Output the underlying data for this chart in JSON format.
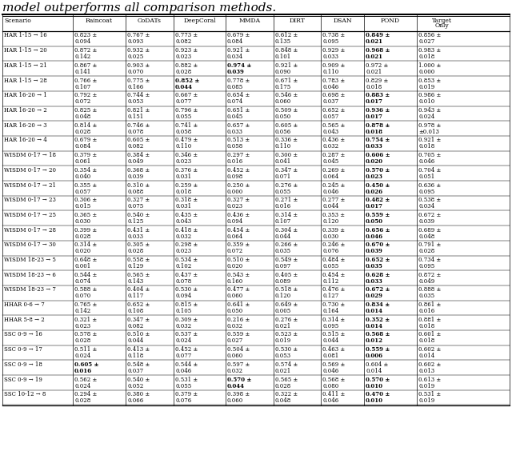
{
  "title": "model outperforms all comparison methods.",
  "columns": [
    "Scenario",
    "Raincoat",
    "CoDATs",
    "DeepCoral",
    "MMDA",
    "DIRT",
    "DSAN",
    "POND",
    "Target\nOnly"
  ],
  "rows": [
    {
      "scenario": "HAR 1-15 → 16",
      "values": [
        "0.823",
        "0.094",
        "0.767",
        "0.093",
        "0.773",
        "0.082",
        "0.679",
        "0.084",
        "0.612",
        "0.135",
        "0.738",
        "0.095",
        "0.849",
        "0.021",
        "0.856",
        "0.027"
      ],
      "bold": [
        false,
        false,
        false,
        false,
        false,
        false,
        false,
        false,
        false,
        false,
        false,
        false,
        true,
        true,
        false,
        false
      ]
    },
    {
      "scenario": "HAR 1-15 → 20",
      "values": [
        "0.872",
        "0.142",
        "0.932",
        "0.025",
        "0.923",
        "0.023",
        "0.921",
        "0.034",
        "0.848",
        "0.101",
        "0.929",
        "0.033",
        "0.968",
        "0.021",
        "0.983",
        "0.018"
      ],
      "bold": [
        false,
        false,
        false,
        false,
        false,
        false,
        false,
        false,
        false,
        false,
        false,
        false,
        true,
        true,
        false,
        false
      ]
    },
    {
      "scenario": "HAR 1-15 → 21",
      "values": [
        "0.867",
        "0.141",
        "0.903",
        "0.070",
        "0.882",
        "0.028",
        "0.974",
        "0.039",
        "0.921",
        "0.090",
        "0.909",
        "0.110",
        "0.972",
        "0.021",
        "1.000",
        "0.000"
      ],
      "bold": [
        false,
        false,
        false,
        false,
        false,
        false,
        true,
        true,
        false,
        false,
        false,
        false,
        false,
        false,
        false,
        false
      ]
    },
    {
      "scenario": "HAR 1-15 → 28",
      "values": [
        "0.766",
        "0.107",
        "0.775",
        "0.166",
        "0.852",
        "0.044",
        "0.778",
        "0.085",
        "0.671",
        "0.175",
        "0.783",
        "0.046",
        "0.829",
        "0.018",
        "0.853",
        "0.019"
      ],
      "bold": [
        false,
        false,
        false,
        false,
        true,
        true,
        false,
        false,
        false,
        false,
        false,
        false,
        false,
        false,
        false,
        false
      ]
    },
    {
      "scenario": "HAR 16-20 → 1",
      "values": [
        "0.792",
        "0.072",
        "0.744",
        "0.053",
        "0.667",
        "0.077",
        "0.654",
        "0.074",
        "0.546",
        "0.060",
        "0.698",
        "0.037",
        "0.883",
        "0.017",
        "0.986",
        "0.010"
      ],
      "bold": [
        false,
        false,
        false,
        false,
        false,
        false,
        false,
        false,
        false,
        false,
        false,
        false,
        true,
        true,
        false,
        false
      ]
    },
    {
      "scenario": "HAR 16-20 → 2",
      "values": [
        "0.825",
        "0.048",
        "0.821",
        "0.151",
        "0.796",
        "0.055",
        "0.651",
        "0.045",
        "0.509",
        "0.050",
        "0.652",
        "0.057",
        "0.936",
        "0.017",
        "0.943",
        "0.024"
      ],
      "bold": [
        false,
        false,
        false,
        false,
        false,
        false,
        false,
        false,
        false,
        false,
        false,
        false,
        true,
        true,
        false,
        false
      ]
    },
    {
      "scenario": "HAR 16-20 → 3",
      "values": [
        "0.814",
        "0.028",
        "0.746",
        "0.078",
        "0.741",
        "0.058",
        "0.657",
        "0.033",
        "0.605",
        "0.056",
        "0.565",
        "0.043",
        "0.878",
        "0.018",
        "0.978",
        "±0.013"
      ],
      "bold": [
        false,
        false,
        false,
        false,
        false,
        false,
        false,
        false,
        false,
        false,
        false,
        false,
        true,
        true,
        false,
        false
      ]
    },
    {
      "scenario": "HAR 16-20 → 4",
      "values": [
        "0.679",
        "0.084",
        "0.605",
        "0.082",
        "0.479",
        "0.110",
        "0.513",
        "0.058",
        "0.336",
        "0.110",
        "0.436",
        "0.032",
        "0.754",
        "0.033",
        "0.921",
        "0.018"
      ],
      "bold": [
        false,
        false,
        false,
        false,
        false,
        false,
        false,
        false,
        false,
        false,
        false,
        false,
        true,
        true,
        false,
        false
      ]
    },
    {
      "scenario": "WISDM 0-17 → 18",
      "values": [
        "0.379",
        "0.061",
        "0.384",
        "0.049",
        "0.346",
        "0.023",
        "0.297",
        "0.016",
        "0.300",
        "0.041",
        "0.287",
        "0.045",
        "0.606",
        "0.020",
        "0.705",
        "0.046"
      ],
      "bold": [
        false,
        false,
        false,
        false,
        false,
        false,
        false,
        false,
        false,
        false,
        false,
        false,
        true,
        true,
        false,
        false
      ]
    },
    {
      "scenario": "WISDM 0-17 → 20",
      "values": [
        "0.354",
        "0.040",
        "0.368",
        "0.039",
        "0.376",
        "0.031",
        "0.452",
        "0.098",
        "0.347",
        "0.071",
        "0.269",
        "0.064",
        "0.570",
        "0.023",
        "0.704",
        "0.051"
      ],
      "bold": [
        false,
        false,
        false,
        false,
        false,
        false,
        false,
        false,
        false,
        false,
        false,
        false,
        true,
        true,
        false,
        false
      ]
    },
    {
      "scenario": "WISDM 0-17 → 21",
      "values": [
        "0.355",
        "0.057",
        "0.310",
        "0.088",
        "0.259",
        "0.018",
        "0.250",
        "0.000",
        "0.276",
        "0.055",
        "0.245",
        "0.046",
        "0.450",
        "0.026",
        "0.636",
        "0.095"
      ],
      "bold": [
        false,
        false,
        false,
        false,
        false,
        false,
        false,
        false,
        false,
        false,
        false,
        false,
        true,
        true,
        false,
        false
      ]
    },
    {
      "scenario": "WISDM 0-17 → 23",
      "values": [
        "0.306",
        "0.015",
        "0.327",
        "0.075",
        "0.318",
        "0.031",
        "0.327",
        "0.023",
        "0.271",
        "0.016",
        "0.277",
        "0.044",
        "0.482",
        "0.017",
        "0.538",
        "0.034"
      ],
      "bold": [
        false,
        false,
        false,
        false,
        false,
        false,
        false,
        false,
        false,
        false,
        false,
        false,
        true,
        true,
        false,
        false
      ]
    },
    {
      "scenario": "WISDM 0-17 → 25",
      "values": [
        "0.365",
        "0.030",
        "0.540",
        "0.125",
        "0.435",
        "0.043",
        "0.436",
        "0.094",
        "0.314",
        "0.107",
        "0.353",
        "0.120",
        "0.559",
        "0.050",
        "0.672",
        "0.039"
      ],
      "bold": [
        false,
        false,
        false,
        false,
        false,
        false,
        false,
        false,
        false,
        false,
        false,
        false,
        true,
        true,
        false,
        false
      ]
    },
    {
      "scenario": "WISDM 0-17 → 28",
      "values": [
        "0.399",
        "0.028",
        "0.431",
        "0.033",
        "0.418",
        "0.032",
        "0.454",
        "0.064",
        "0.304",
        "0.044",
        "0.339",
        "0.030",
        "0.656",
        "0.046",
        "0.689",
        "0.048"
      ],
      "bold": [
        false,
        false,
        false,
        false,
        false,
        false,
        false,
        false,
        false,
        false,
        false,
        false,
        true,
        true,
        false,
        false
      ]
    },
    {
      "scenario": "WISDM 0-17 → 30",
      "values": [
        "0.314",
        "0.020",
        "0.305",
        "0.028",
        "0.298",
        "0.023",
        "0.359",
        "0.072",
        "0.266",
        "0.035",
        "0.246",
        "0.076",
        "0.670",
        "0.039",
        "0.791",
        "0.028"
      ],
      "bold": [
        false,
        false,
        false,
        false,
        false,
        false,
        false,
        false,
        false,
        false,
        false,
        false,
        true,
        true,
        false,
        false
      ]
    },
    {
      "scenario": "WISDM 18-23 → 5",
      "values": [
        "0.648",
        "0.001",
        "0.558",
        "0.129",
        "0.534",
        "0.102",
        "0.510",
        "0.020",
        "0.549",
        "0.097",
        "0.484",
        "0.055",
        "0.652",
        "0.035",
        "0.734",
        "0.095"
      ],
      "bold": [
        false,
        false,
        false,
        false,
        false,
        false,
        false,
        false,
        false,
        false,
        false,
        false,
        true,
        true,
        false,
        false
      ]
    },
    {
      "scenario": "WISDM 18-23 → 6",
      "values": [
        "0.544",
        "0.074",
        "0.565",
        "0.143",
        "0.437",
        "0.078",
        "0.543",
        "0.160",
        "0.405",
        "0.089",
        "0.454",
        "0.112",
        "0.628",
        "0.033",
        "0.872",
        "0.049"
      ],
      "bold": [
        false,
        false,
        false,
        false,
        false,
        false,
        false,
        false,
        false,
        false,
        false,
        false,
        true,
        true,
        false,
        false
      ]
    },
    {
      "scenario": "WISDM 18-23 → 7",
      "values": [
        "0.588",
        "0.070",
        "0.404",
        "0.117",
        "0.530",
        "0.094",
        "0.477",
        "0.060",
        "0.518",
        "0.120",
        "0.476",
        "0.127",
        "0.672",
        "0.029",
        "0.888",
        "0.035"
      ],
      "bold": [
        false,
        false,
        false,
        false,
        false,
        false,
        false,
        false,
        false,
        false,
        false,
        false,
        true,
        true,
        false,
        false
      ]
    },
    {
      "scenario": "HHAR 0-6 → 7",
      "values": [
        "0.765",
        "0.142",
        "0.652",
        "0.108",
        "0.815",
        "0.105",
        "0.641",
        "0.050",
        "0.649",
        "0.005",
        "0.730",
        "0.164",
        "0.834",
        "0.014",
        "0.861",
        "0.016"
      ],
      "bold": [
        false,
        false,
        false,
        false,
        false,
        false,
        false,
        false,
        false,
        false,
        false,
        false,
        true,
        true,
        false,
        false
      ]
    },
    {
      "scenario": "HHAR 5-8 → 2",
      "values": [
        "0.321",
        "0.023",
        "0.347",
        "0.082",
        "0.309",
        "0.032",
        "0.216",
        "0.032",
        "0.276",
        "0.021",
        "0.314",
        "0.095",
        "0.352",
        "0.014",
        "0.881",
        "0.018"
      ],
      "bold": [
        false,
        false,
        false,
        false,
        false,
        false,
        false,
        false,
        false,
        false,
        false,
        false,
        true,
        true,
        false,
        false
      ]
    },
    {
      "scenario": "SSC 0-9 → 16",
      "values": [
        "0.578",
        "0.028",
        "0.510",
        "0.044",
        "0.537",
        "0.024",
        "0.559",
        "0.027",
        "0.523",
        "0.019",
        "0.515",
        "0.044",
        "0.568",
        "0.012",
        "0.601",
        "0.018"
      ],
      "bold": [
        false,
        false,
        false,
        false,
        false,
        false,
        false,
        false,
        false,
        false,
        false,
        false,
        true,
        true,
        false,
        false
      ]
    },
    {
      "scenario": "SSC 0-9 → 17",
      "values": [
        "0.511",
        "0.024",
        "0.413",
        "0.118",
        "0.452",
        "0.077",
        "0.504",
        "0.060",
        "0.530",
        "0.053",
        "0.463",
        "0.081",
        "0.559",
        "0.006",
        "0.602",
        "0.014"
      ],
      "bold": [
        false,
        false,
        false,
        false,
        false,
        false,
        false,
        false,
        false,
        false,
        false,
        false,
        true,
        true,
        false,
        false
      ]
    },
    {
      "scenario": "SSC 0-9 → 18",
      "values": [
        "0.605",
        "0.016",
        "0.548",
        "0.037",
        "0.544",
        "0.046",
        "0.597",
        "0.032",
        "0.574",
        "0.021",
        "0.569",
        "0.046",
        "0.604",
        "0.014",
        "0.602",
        "0.013"
      ],
      "bold": [
        true,
        true,
        false,
        false,
        false,
        false,
        false,
        false,
        false,
        false,
        false,
        false,
        false,
        false,
        false,
        false
      ]
    },
    {
      "scenario": "SSC 0-9 → 19",
      "values": [
        "0.562",
        "0.024",
        "0.540",
        "0.052",
        "0.531",
        "0.055",
        "0.570",
        "0.044",
        "0.565",
        "0.028",
        "0.568",
        "0.080",
        "0.570",
        "0.010",
        "0.613",
        "0.019"
      ],
      "bold": [
        false,
        false,
        false,
        false,
        false,
        false,
        true,
        true,
        false,
        false,
        false,
        false,
        true,
        true,
        false,
        false
      ]
    },
    {
      "scenario": "SSC 10-12 → 8",
      "values": [
        "0.294",
        "0.028",
        "0.380",
        "0.066",
        "0.379",
        "0.076",
        "0.398",
        "0.060",
        "0.322",
        "0.048",
        "0.411",
        "0.046",
        "0.470",
        "0.010",
        "0.531",
        "0.019"
      ],
      "bold": [
        false,
        false,
        false,
        false,
        false,
        false,
        false,
        false,
        false,
        false,
        false,
        false,
        true,
        true,
        false,
        false
      ]
    }
  ],
  "title_fontsize": 11,
  "header_fontsize": 5.5,
  "cell_fontsize": 5.0,
  "figsize": [
    6.4,
    5.79
  ],
  "dpi": 100
}
